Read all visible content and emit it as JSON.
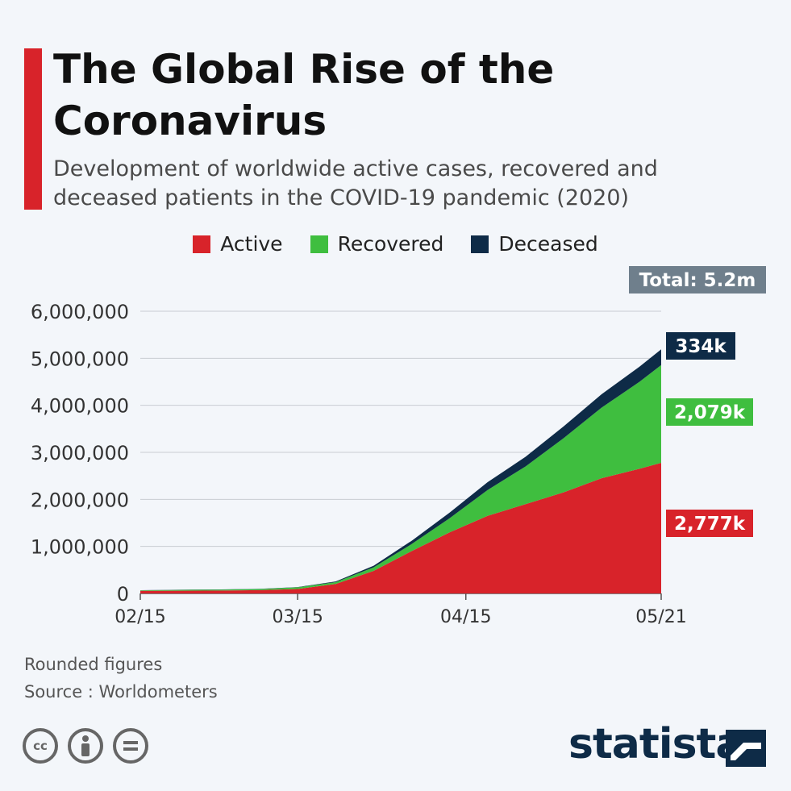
{
  "header": {
    "title": "The Global Rise of the Coronavirus",
    "subtitle": "Development of worldwide active cases, recovered and deceased patients in the COVID-19 pandemic (2020)"
  },
  "legend": [
    {
      "label": "Active",
      "color": "#d8232a"
    },
    {
      "label": "Recovered",
      "color": "#3fbe3f"
    },
    {
      "label": "Deceased",
      "color": "#0e2b47"
    }
  ],
  "total_badge": "Total: 5.2m",
  "end_labels": {
    "deceased": "334k",
    "recovered": "2,079k",
    "active": "2,777k"
  },
  "footer": {
    "note": "Rounded figures",
    "source": "Source : Worldometers",
    "brand": "statista",
    "license_icons": [
      "cc-icon",
      "by-person-icon",
      "nd-equals-icon"
    ]
  },
  "chart_data": {
    "type": "area",
    "stacked": true,
    "x_ticks": [
      "02/15",
      "03/15",
      "04/15",
      "05/21"
    ],
    "x": [
      "02/15",
      "02/22",
      "03/01",
      "03/08",
      "03/15",
      "03/22",
      "03/29",
      "04/05",
      "04/12",
      "04/19",
      "04/26",
      "05/03",
      "05/10",
      "05/17",
      "05/21"
    ],
    "ylim": [
      0,
      6000000
    ],
    "y_ticks": [
      "0",
      "1,000,000",
      "2,000,000",
      "3,000,000",
      "4,000,000",
      "5,000,000",
      "6,000,000"
    ],
    "grid": true,
    "legend_position": "top-center",
    "series": [
      {
        "name": "Active",
        "color": "#d8232a",
        "values": [
          55000,
          58000,
          62000,
          70000,
          95000,
          200000,
          480000,
          900000,
          1300000,
          1650000,
          1900000,
          2150000,
          2450000,
          2650000,
          2777000
        ]
      },
      {
        "name": "Recovered",
        "color": "#3fbe3f",
        "values": [
          12000,
          18000,
          20000,
          25000,
          35000,
          40000,
          75000,
          150000,
          300000,
          550000,
          800000,
          1150000,
          1500000,
          1850000,
          2079000
        ]
      },
      {
        "name": "Deceased",
        "color": "#0e2b47",
        "values": [
          1500,
          2300,
          3000,
          3800,
          5800,
          15000,
          35000,
          70000,
          120000,
          165000,
          205000,
          250000,
          285000,
          320000,
          334000
        ]
      }
    ]
  }
}
